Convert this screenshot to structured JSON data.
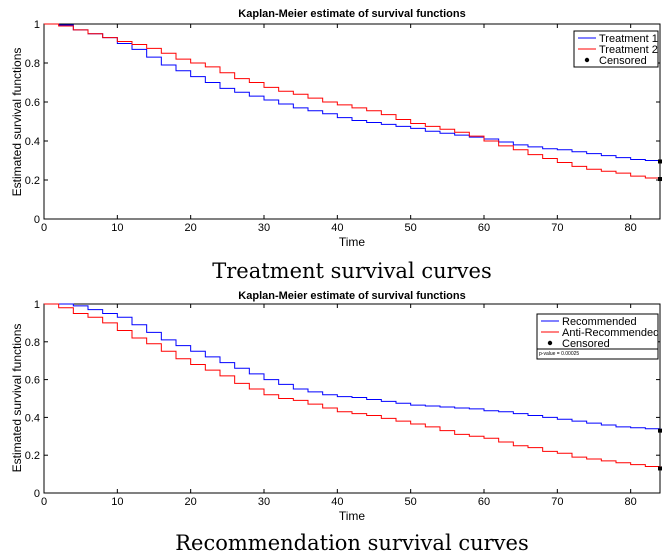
{
  "captions": [
    "Treatment survival curves",
    "Recommendation survival curves"
  ],
  "chart_data": [
    {
      "type": "line",
      "title": "Kaplan-Meier estimate of survival functions",
      "xlabel": "Time",
      "ylabel": "Estimated survival functions",
      "xlim": [
        0,
        84
      ],
      "ylim": [
        0,
        1
      ],
      "xticks": [
        0,
        10,
        20,
        30,
        40,
        50,
        60,
        70,
        80
      ],
      "yticks": [
        0,
        0.2,
        0.4,
        0.6,
        0.8,
        1
      ],
      "grid": false,
      "legend_position": "top-right",
      "censored_label": "Censored",
      "series": [
        {
          "name": "Treatment 1",
          "color": "#0000ff",
          "x": [
            0,
            2,
            4,
            6,
            8,
            10,
            12,
            14,
            16,
            18,
            20,
            22,
            24,
            26,
            28,
            30,
            32,
            34,
            36,
            38,
            40,
            42,
            44,
            46,
            48,
            50,
            52,
            54,
            56,
            58,
            60,
            62,
            64,
            66,
            68,
            70,
            72,
            74,
            76,
            78,
            80,
            82,
            84
          ],
          "y": [
            1.0,
            0.995,
            0.97,
            0.95,
            0.93,
            0.9,
            0.87,
            0.83,
            0.79,
            0.76,
            0.73,
            0.7,
            0.67,
            0.65,
            0.63,
            0.61,
            0.59,
            0.57,
            0.555,
            0.54,
            0.52,
            0.505,
            0.495,
            0.485,
            0.475,
            0.465,
            0.45,
            0.44,
            0.43,
            0.42,
            0.41,
            0.395,
            0.38,
            0.37,
            0.36,
            0.355,
            0.345,
            0.335,
            0.325,
            0.315,
            0.305,
            0.3,
            0.295
          ],
          "censored": [
            {
              "x": 84,
              "y": 0.295
            }
          ]
        },
        {
          "name": "Treatment 2",
          "color": "#ff0000",
          "x": [
            0,
            2,
            4,
            6,
            8,
            10,
            12,
            14,
            16,
            18,
            20,
            22,
            24,
            26,
            28,
            30,
            32,
            34,
            36,
            38,
            40,
            42,
            44,
            46,
            48,
            50,
            52,
            54,
            56,
            58,
            60,
            62,
            64,
            66,
            68,
            70,
            72,
            74,
            76,
            78,
            80,
            82,
            84
          ],
          "y": [
            1.0,
            0.99,
            0.97,
            0.95,
            0.93,
            0.91,
            0.895,
            0.875,
            0.85,
            0.82,
            0.8,
            0.78,
            0.75,
            0.72,
            0.7,
            0.675,
            0.655,
            0.64,
            0.62,
            0.6,
            0.585,
            0.57,
            0.555,
            0.535,
            0.51,
            0.49,
            0.475,
            0.46,
            0.445,
            0.425,
            0.4,
            0.375,
            0.355,
            0.33,
            0.31,
            0.29,
            0.27,
            0.255,
            0.245,
            0.235,
            0.22,
            0.21,
            0.205
          ],
          "censored": [
            {
              "x": 84,
              "y": 0.205
            }
          ]
        }
      ]
    },
    {
      "type": "line",
      "title": "Kaplan-Meier estimate of survival functions",
      "xlabel": "Time",
      "ylabel": "Estimated survival functions",
      "xlim": [
        0,
        84
      ],
      "ylim": [
        0,
        1
      ],
      "xticks": [
        0,
        10,
        20,
        30,
        40,
        50,
        60,
        70,
        80
      ],
      "yticks": [
        0,
        0.2,
        0.4,
        0.6,
        0.8,
        1
      ],
      "grid": false,
      "legend_position": "top-right",
      "censored_label": "Censored",
      "annotation": "p-value = 0.00025",
      "series": [
        {
          "name": "Recommended",
          "color": "#0000ff",
          "x": [
            0,
            2,
            4,
            6,
            8,
            10,
            12,
            14,
            16,
            18,
            20,
            22,
            24,
            26,
            28,
            30,
            32,
            34,
            36,
            38,
            40,
            42,
            44,
            46,
            48,
            50,
            52,
            54,
            56,
            58,
            60,
            62,
            64,
            66,
            68,
            70,
            72,
            74,
            76,
            78,
            80,
            82,
            84
          ],
          "y": [
            1.0,
            1.0,
            0.99,
            0.97,
            0.95,
            0.93,
            0.89,
            0.85,
            0.81,
            0.78,
            0.75,
            0.72,
            0.69,
            0.66,
            0.63,
            0.6,
            0.575,
            0.55,
            0.535,
            0.52,
            0.51,
            0.505,
            0.495,
            0.485,
            0.475,
            0.465,
            0.46,
            0.455,
            0.45,
            0.445,
            0.435,
            0.43,
            0.42,
            0.41,
            0.4,
            0.39,
            0.38,
            0.37,
            0.36,
            0.35,
            0.345,
            0.34,
            0.33
          ],
          "censored": [
            {
              "x": 84,
              "y": 0.33
            }
          ]
        },
        {
          "name": "Anti-Recommended",
          "color": "#ff0000",
          "x": [
            0,
            2,
            4,
            6,
            8,
            10,
            12,
            14,
            16,
            18,
            20,
            22,
            24,
            26,
            28,
            30,
            32,
            34,
            36,
            38,
            40,
            42,
            44,
            46,
            48,
            50,
            52,
            54,
            56,
            58,
            60,
            62,
            64,
            66,
            68,
            70,
            72,
            74,
            76,
            78,
            80,
            82,
            84
          ],
          "y": [
            1.0,
            0.98,
            0.95,
            0.93,
            0.9,
            0.86,
            0.82,
            0.79,
            0.75,
            0.71,
            0.68,
            0.65,
            0.62,
            0.58,
            0.55,
            0.52,
            0.5,
            0.49,
            0.47,
            0.45,
            0.43,
            0.42,
            0.41,
            0.395,
            0.38,
            0.365,
            0.35,
            0.33,
            0.31,
            0.3,
            0.29,
            0.27,
            0.25,
            0.24,
            0.22,
            0.21,
            0.19,
            0.18,
            0.17,
            0.16,
            0.15,
            0.14,
            0.13
          ],
          "censored": [
            {
              "x": 84,
              "y": 0.13
            }
          ]
        }
      ]
    }
  ]
}
